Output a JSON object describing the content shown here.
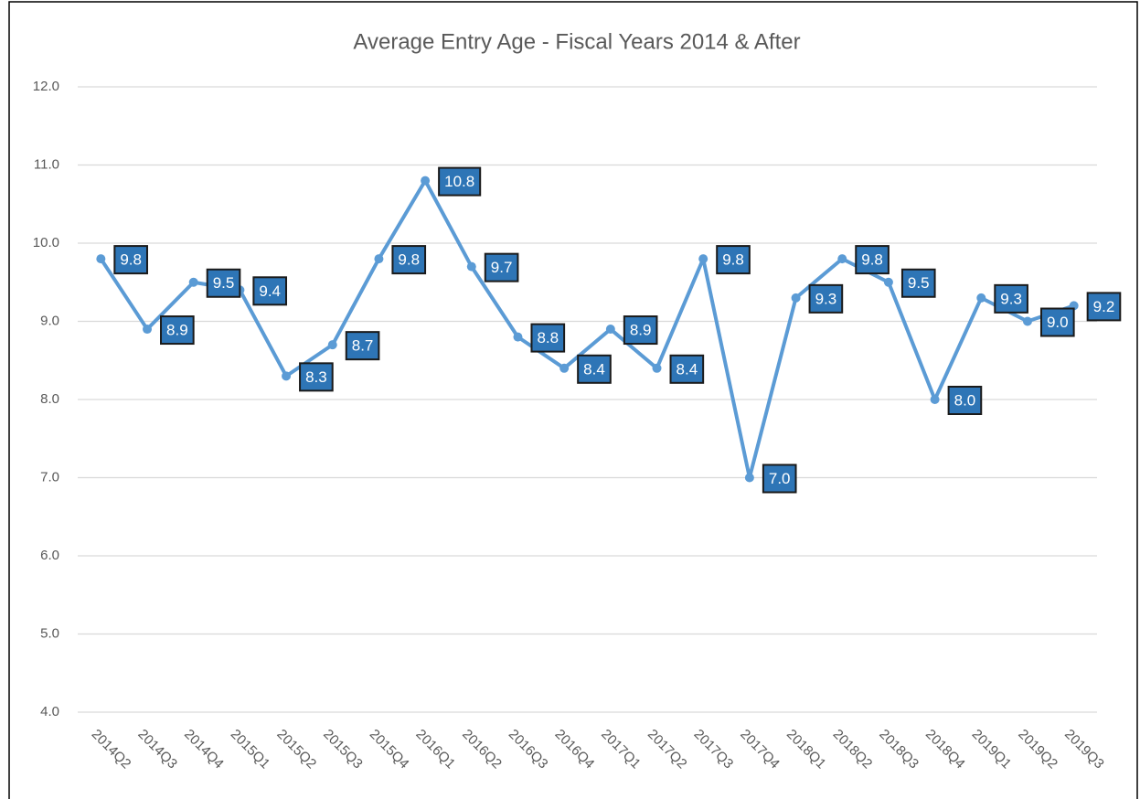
{
  "chart_data": {
    "type": "line",
    "title": "Average Entry Age - Fiscal Years 2014 & After",
    "categories": [
      "2014Q2",
      "2014Q3",
      "2014Q4",
      "2015Q1",
      "2015Q2",
      "2015Q3",
      "2015Q4",
      "2016Q1",
      "2016Q2",
      "2016Q3",
      "2016Q4",
      "2017Q1",
      "2017Q2",
      "2017Q3",
      "2017Q4",
      "2018Q1",
      "2018Q2",
      "2018Q3",
      "2018Q4",
      "2019Q1",
      "2019Q2",
      "2019Q3"
    ],
    "series": [
      {
        "color": "#5b9bd5",
        "values": [
          9.8,
          8.9,
          9.5,
          9.4,
          8.3,
          8.7,
          9.8,
          10.8,
          9.7,
          8.8,
          8.4,
          8.9,
          8.4,
          9.8,
          7.0,
          9.3,
          9.8,
          9.5,
          8.0,
          9.3,
          9.0,
          9.2
        ],
        "value_labels": [
          "9.8",
          "8.9",
          "9.5",
          "9.4",
          "8.3",
          "8.7",
          "9.8",
          "10.8",
          "9.7",
          "8.8",
          "8.4",
          "8.9",
          "8.4",
          "9.8",
          "7.0",
          "9.3",
          "9.8",
          "9.5",
          "8.0",
          "9.3",
          "9.0",
          "9.2"
        ]
      }
    ],
    "ylim": [
      4,
      12
    ],
    "yticks": [
      {
        "value": 4,
        "label": "4.0"
      },
      {
        "value": 5,
        "label": "5.0"
      },
      {
        "value": 6,
        "label": "6.0"
      },
      {
        "value": 7,
        "label": "7.0"
      },
      {
        "value": 8,
        "label": "8.0"
      },
      {
        "value": 9,
        "label": "9.0"
      },
      {
        "value": 10,
        "label": "10.0"
      },
      {
        "value": 11,
        "label": "11.0"
      },
      {
        "value": 12,
        "label": "12.0"
      }
    ],
    "grid": true
  }
}
